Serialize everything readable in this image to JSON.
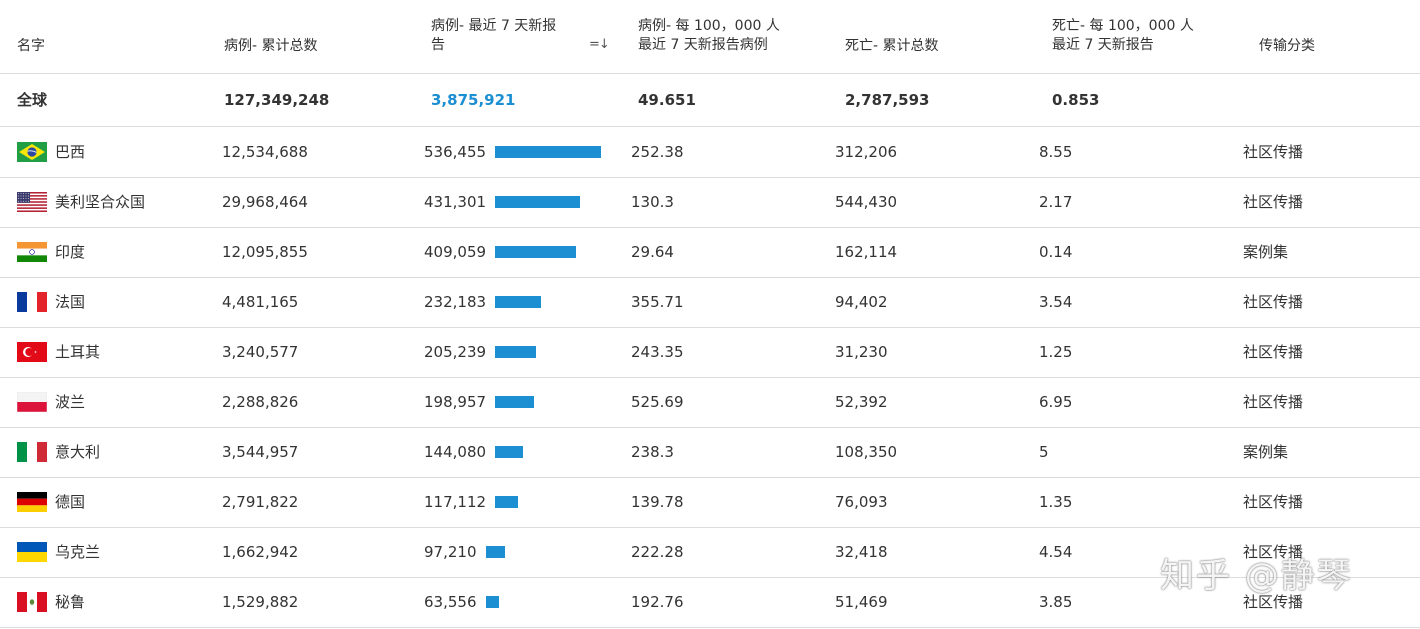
{
  "headers": {
    "name": "名字",
    "cumulative_cases": "病例- 累计总数",
    "cases_7d_line1": "病例- 最近 7 天新报",
    "cases_7d_line2": "告",
    "per100k_line1": "病例- 每 100，000 人",
    "per100k_line2": "最近 7 天新报告病例",
    "deaths_total": "死亡- 累计总数",
    "deaths_per100k_line1": "死亡- 每 100，000 人",
    "deaths_per100k_line2": "最近 7 天新报告",
    "transmission": "传输分类",
    "sort_icon": "sort-desc-icon",
    "sort_glyph": "=↓"
  },
  "global": {
    "name": "全球",
    "cumulative": "127,349,248",
    "new7": "3,875,921",
    "per100k": "49.651",
    "deaths": "2,787,593",
    "deaths_per100k": "0.853"
  },
  "bar_max": 536455,
  "colors": {
    "bar": "#1b8fd1",
    "highlight_text": "#1b8fd1",
    "divider": "#dcdcdc"
  },
  "rows": [
    {
      "flag": "brazil-flag-icon",
      "name": "巴西",
      "cumulative": "12,534,688",
      "new7": "536,455",
      "new7_value": 536455,
      "per100k": "252.38",
      "deaths": "312,206",
      "deaths_per100k": "8.55",
      "transmission": "社区传播"
    },
    {
      "flag": "usa-flag-icon",
      "name": "美利坚合众国",
      "cumulative": "29,968,464",
      "new7": "431,301",
      "new7_value": 431301,
      "per100k": "130.3",
      "deaths": "544,430",
      "deaths_per100k": "2.17",
      "transmission": "社区传播"
    },
    {
      "flag": "india-flag-icon",
      "name": "印度",
      "cumulative": "12,095,855",
      "new7": "409,059",
      "new7_value": 409059,
      "per100k": "29.64",
      "deaths": "162,114",
      "deaths_per100k": "0.14",
      "transmission": "案例集"
    },
    {
      "flag": "france-flag-icon",
      "name": "法国",
      "cumulative": "4,481,165",
      "new7": "232,183",
      "new7_value": 232183,
      "per100k": "355.71",
      "deaths": "94,402",
      "deaths_per100k": "3.54",
      "transmission": "社区传播"
    },
    {
      "flag": "turkey-flag-icon",
      "name": "土耳其",
      "cumulative": "3,240,577",
      "new7": "205,239",
      "new7_value": 205239,
      "per100k": "243.35",
      "deaths": "31,230",
      "deaths_per100k": "1.25",
      "transmission": "社区传播"
    },
    {
      "flag": "poland-flag-icon",
      "name": "波兰",
      "cumulative": "2,288,826",
      "new7": "198,957",
      "new7_value": 198957,
      "per100k": "525.69",
      "deaths": "52,392",
      "deaths_per100k": "6.95",
      "transmission": "社区传播"
    },
    {
      "flag": "italy-flag-icon",
      "name": "意大利",
      "cumulative": "3,544,957",
      "new7": "144,080",
      "new7_value": 144080,
      "per100k": "238.3",
      "deaths": "108,350",
      "deaths_per100k": "5",
      "transmission": "案例集"
    },
    {
      "flag": "germany-flag-icon",
      "name": "德国",
      "cumulative": "2,791,822",
      "new7": "117,112",
      "new7_value": 117112,
      "per100k": "139.78",
      "deaths": "76,093",
      "deaths_per100k": "1.35",
      "transmission": "社区传播"
    },
    {
      "flag": "ukraine-flag-icon",
      "name": "乌克兰",
      "cumulative": "1,662,942",
      "new7": "97,210",
      "new7_value": 97210,
      "per100k": "222.28",
      "deaths": "32,418",
      "deaths_per100k": "4.54",
      "transmission": "社区传播"
    },
    {
      "flag": "peru-flag-icon",
      "name": "秘鲁",
      "cumulative": "1,529,882",
      "new7": "63,556",
      "new7_value": 63556,
      "per100k": "192.76",
      "deaths": "51,469",
      "deaths_per100k": "3.85",
      "transmission": "社区传播"
    }
  ],
  "watermark": "知乎 @静琴"
}
